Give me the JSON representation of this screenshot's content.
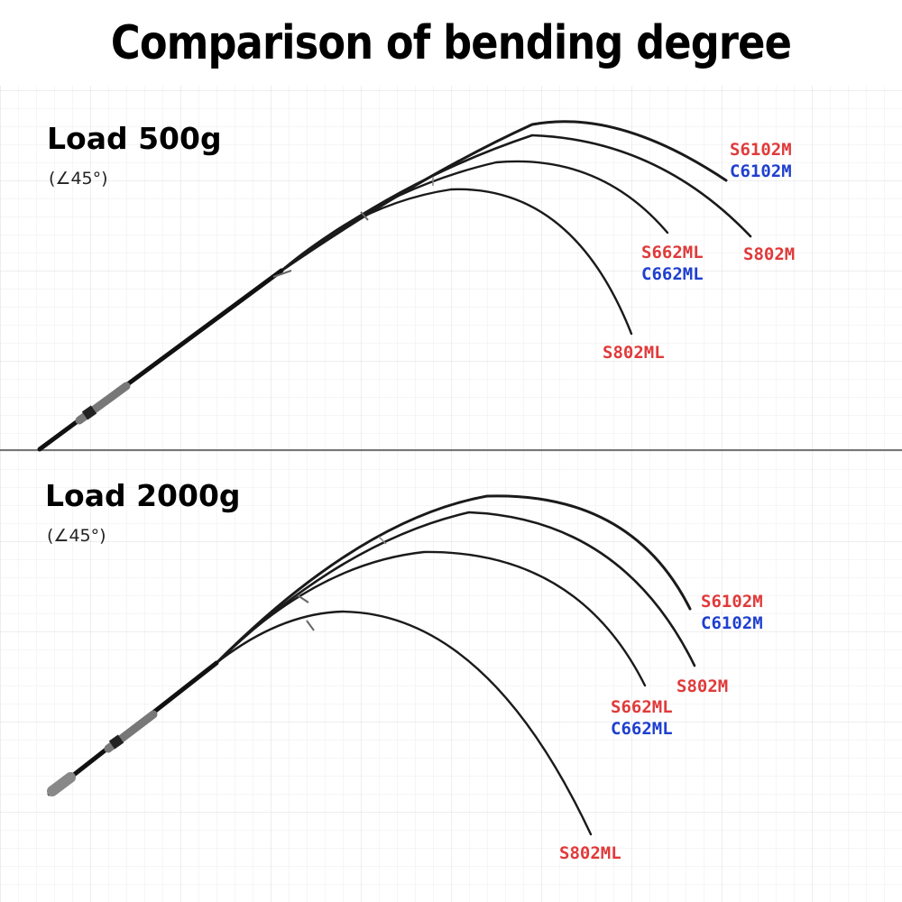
{
  "title": "Comparison of bending degree",
  "colors": {
    "red_label": "#e03a3a",
    "blue_label": "#1f3fcf",
    "rod": "#1a1a1a",
    "grid": "#e6e6e6",
    "divider": "#4a4a4a"
  },
  "panels": [
    {
      "load": "Load 500g",
      "angle": "(∠45°)",
      "rods": [
        {
          "labels": [
            "S6102M",
            "C6102M"
          ],
          "colors": [
            "red",
            "blue"
          ]
        },
        {
          "labels": [
            "S802M"
          ],
          "colors": [
            "red"
          ]
        },
        {
          "labels": [
            "S662ML",
            "C662ML"
          ],
          "colors": [
            "red",
            "blue"
          ]
        },
        {
          "labels": [
            "S802ML"
          ],
          "colors": [
            "red"
          ]
        }
      ]
    },
    {
      "load": "Load 2000g",
      "angle": "(∠45°)",
      "rods": [
        {
          "labels": [
            "S6102M",
            "C6102M"
          ],
          "colors": [
            "red",
            "blue"
          ]
        },
        {
          "labels": [
            "S802M"
          ],
          "colors": [
            "red"
          ]
        },
        {
          "labels": [
            "S662ML",
            "C662ML"
          ],
          "colors": [
            "red",
            "blue"
          ]
        },
        {
          "labels": [
            "S802ML"
          ],
          "colors": [
            "red"
          ]
        }
      ]
    }
  ]
}
